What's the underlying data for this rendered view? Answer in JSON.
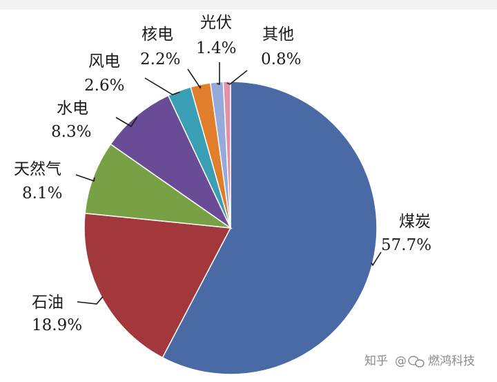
{
  "chart_data": {
    "type": "pie",
    "title": "",
    "slices": [
      {
        "name": "煤炭",
        "value": 57.7,
        "label": "57.7%",
        "color": "#4a6aa5"
      },
      {
        "name": "石油",
        "value": 18.9,
        "label": "18.9%",
        "color": "#a3383c"
      },
      {
        "name": "天然气",
        "value": 8.1,
        "label": "8.1%",
        "color": "#78a045"
      },
      {
        "name": "水电",
        "value": 8.3,
        "label": "8.3%",
        "color": "#6a4c96"
      },
      {
        "name": "风电",
        "value": 2.6,
        "label": "2.6%",
        "color": "#3a9fb4"
      },
      {
        "name": "核电",
        "value": 2.2,
        "label": "2.2%",
        "color": "#e07e2c"
      },
      {
        "name": "光伏",
        "value": 1.4,
        "label": "1.4%",
        "color": "#95aadb"
      },
      {
        "name": "其他",
        "value": 0.8,
        "label": "0.8%",
        "color": "#e292a8"
      }
    ],
    "start": "12 o'clock",
    "direction": "clockwise"
  },
  "watermark": {
    "site": "知乎",
    "handle": "@",
    "author": "燃鸿科技"
  }
}
